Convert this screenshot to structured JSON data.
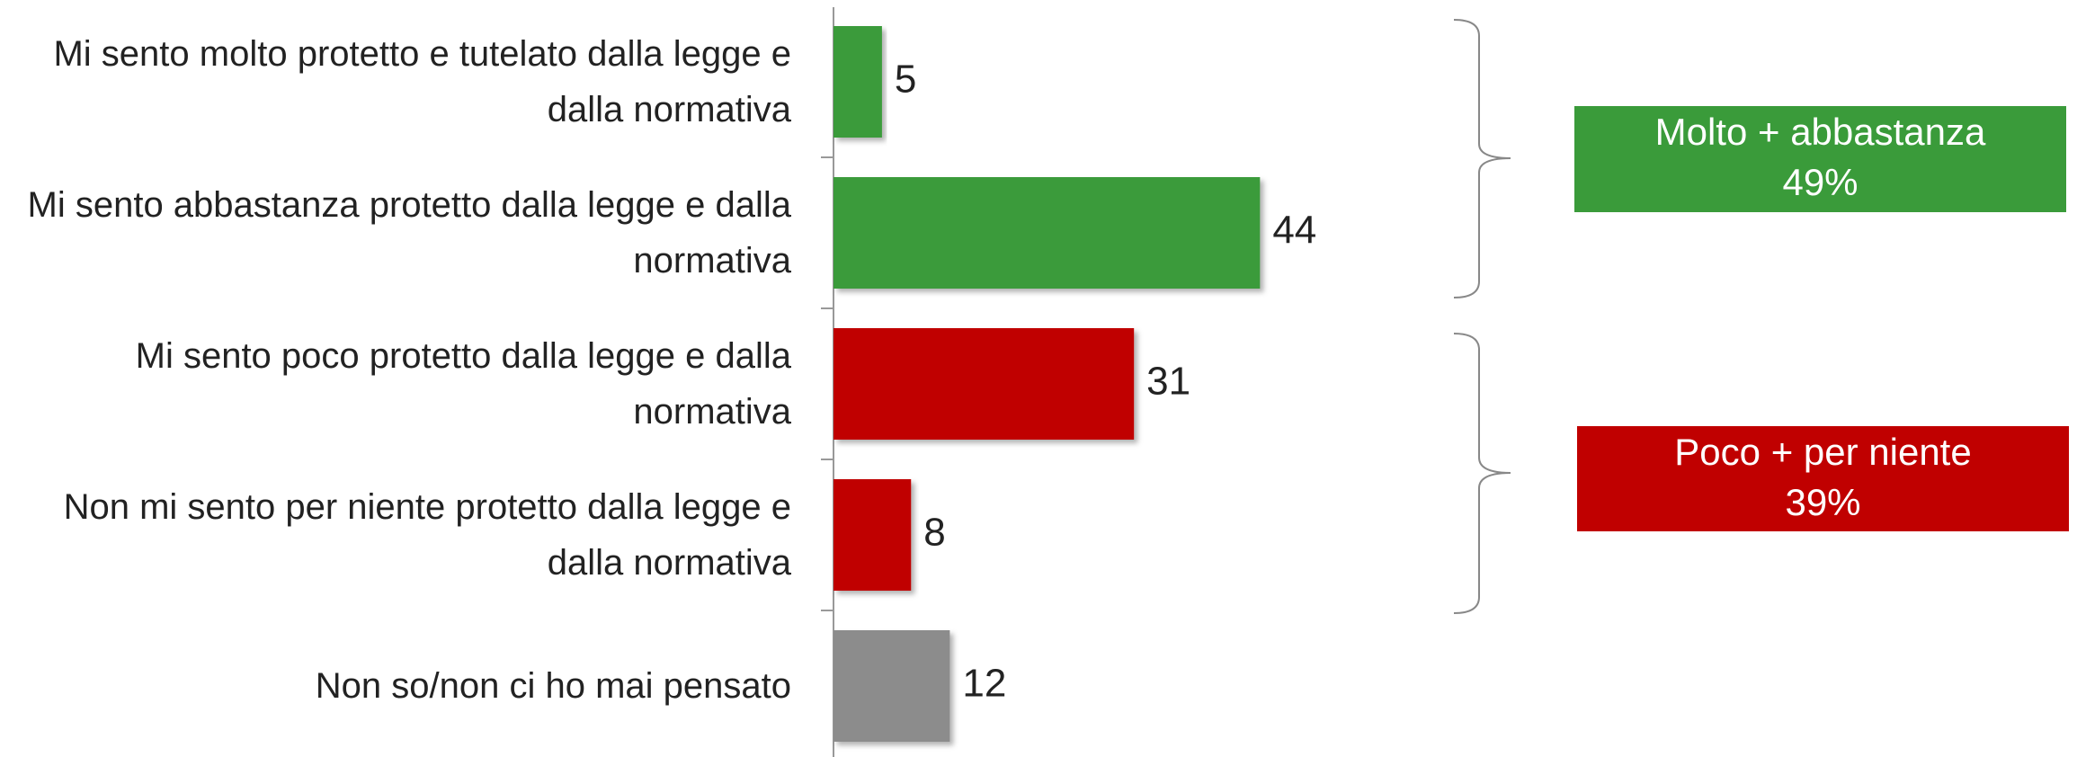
{
  "chart_data": {
    "type": "bar",
    "orientation": "horizontal",
    "categories": [
      "Mi sento molto protetto e tutelato dalla legge e dalla normativa",
      "Mi sento abbastanza protetto dalla legge e dalla normativa",
      "Mi sento poco protetto dalla legge e dalla normativa",
      "Non mi sento per niente protetto dalla legge e dalla normativa",
      "Non so/non ci ho mai pensato"
    ],
    "values": [
      5,
      44,
      31,
      8,
      12
    ],
    "colors": [
      "#3a9b3a",
      "#3a9b3a",
      "#c00000",
      "#c00000",
      "#8c8c8c"
    ],
    "annotations": [
      {
        "text": "Molto + abbastanza",
        "value_label": "49%",
        "color": "#3a9b3a"
      },
      {
        "text": "Poco + per niente",
        "value_label": "39%",
        "color": "#c00000"
      }
    ]
  }
}
